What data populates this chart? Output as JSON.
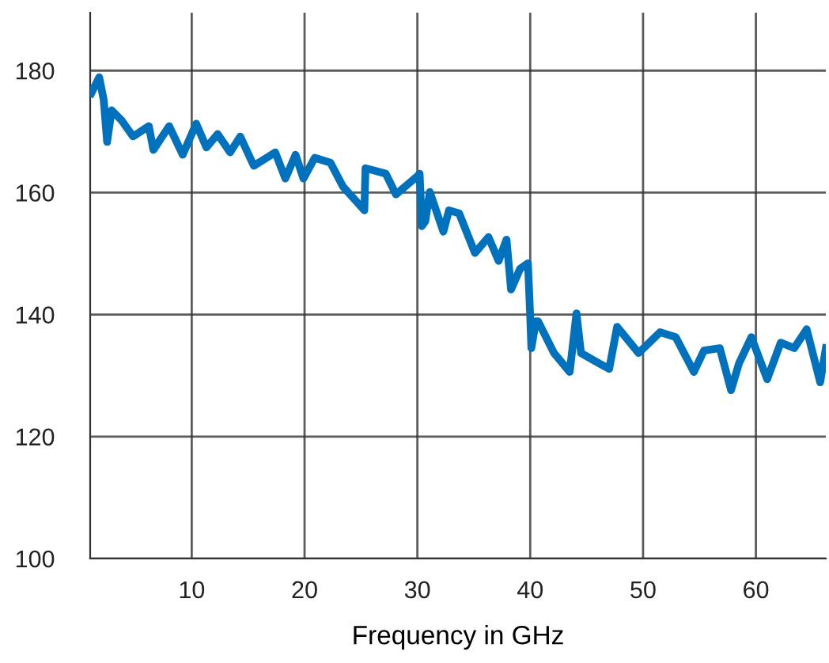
{
  "chart_data": {
    "type": "line",
    "xlabel": "Frequency in GHz",
    "xlim": [
      1,
      66.2
    ],
    "ylim": [
      100,
      189.5
    ],
    "xticks": [
      10,
      20,
      30,
      40,
      50,
      60
    ],
    "yticks": [
      100,
      120,
      140,
      160,
      180
    ],
    "grid": true,
    "line_style": "solid",
    "marker": "none",
    "series": [
      {
        "color": "#0072bd",
        "x": [
          1.1,
          1.8,
          2.2,
          2.5,
          2.9,
          3.8,
          4.8,
          6.2,
          6.6,
          8.0,
          9.2,
          10.4,
          11.3,
          12.3,
          13.4,
          14.3,
          15.5,
          17.4,
          18.3,
          19.2,
          19.9,
          20.9,
          22.3,
          23.4,
          25.3,
          25.4,
          27.2,
          28.1,
          30.0,
          30.2,
          30.4,
          30.7,
          31.1,
          32.3,
          32.8,
          33.7,
          35.1,
          36.3,
          37.2,
          37.9,
          38.3,
          39.1,
          39.8,
          40.0,
          40.1,
          40.5,
          40.7,
          42.1,
          43.5,
          44.1,
          44.5,
          46.1,
          47.0,
          47.7,
          49.6,
          51.5,
          52.9,
          54.5,
          55.4,
          56.8,
          57.8,
          58.5,
          59.6,
          61.0,
          62.2,
          63.4,
          64.5,
          65.7,
          66.2
        ],
        "values": [
          176.3,
          178.9,
          175.2,
          168.3,
          173.5,
          171.8,
          169.2,
          170.9,
          167.0,
          170.9,
          166.2,
          171.3,
          167.4,
          169.6,
          166.6,
          169.2,
          164.4,
          166.6,
          162.3,
          166.2,
          162.3,
          165.7,
          164.9,
          161.0,
          157.1,
          164.0,
          163.1,
          159.7,
          162.7,
          163.1,
          154.5,
          155.3,
          160.1,
          153.6,
          157.1,
          156.6,
          150.1,
          152.7,
          148.8,
          152.3,
          144.1,
          147.5,
          148.4,
          139.7,
          134.5,
          138.9,
          138.9,
          133.7,
          130.6,
          140.2,
          133.7,
          132.0,
          131.1,
          138.0,
          133.7,
          137.1,
          136.3,
          130.6,
          134.1,
          134.5,
          127.6,
          132.0,
          136.3,
          129.4,
          135.4,
          134.5,
          137.6,
          128.9,
          134.5
        ]
      }
    ]
  }
}
